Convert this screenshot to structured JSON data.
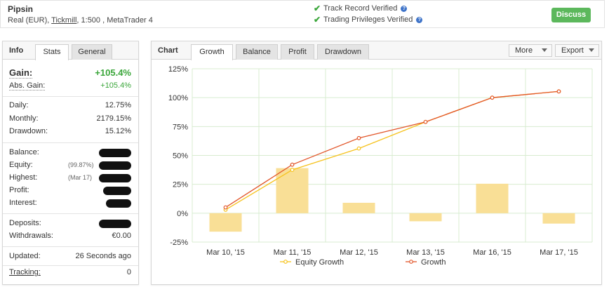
{
  "header": {
    "account_name": "Pipsin",
    "account_type": "Real (EUR),",
    "broker": "Tickmill",
    "leverage_platform": ", 1:500 , MetaTrader 4",
    "verifications": [
      "Track Record Verified",
      "Trading Privileges Verified"
    ],
    "discuss_label": "Discuss"
  },
  "info": {
    "title": "Info",
    "tabs": [
      "Stats",
      "General"
    ],
    "gain_label": "Gain:",
    "gain_value": "+105.4%",
    "abs_gain_label": "Abs. Gain:",
    "abs_gain_value": "+105.4%",
    "daily_label": "Daily:",
    "daily_value": "12.75%",
    "monthly_label": "Monthly:",
    "monthly_value": "2179.15%",
    "drawdown_label": "Drawdown:",
    "drawdown_value": "15.12%",
    "balance_label": "Balance:",
    "equity_label": "Equity:",
    "equity_note": "(99.87%)",
    "highest_label": "Highest:",
    "highest_note": "(Mar 17)",
    "profit_label": "Profit:",
    "interest_label": "Interest:",
    "deposits_label": "Deposits:",
    "withdrawals_label": "Withdrawals:",
    "withdrawals_value": "€0.00",
    "updated_label": "Updated:",
    "updated_value": "26 Seconds ago",
    "tracking_label": "Tracking:",
    "tracking_value": "0"
  },
  "chart_panel": {
    "title": "Chart",
    "tabs": [
      "Growth",
      "Balance",
      "Profit",
      "Drawdown"
    ],
    "more_label": "More",
    "export_label": "Export"
  },
  "chart_data": {
    "type": "line",
    "categories": [
      "Mar 10, '15",
      "Mar 11, '15",
      "Mar 12, '15",
      "Mar 13, '15",
      "Mar 16, '15",
      "Mar 17, '15"
    ],
    "series": [
      {
        "name": "Equity Growth",
        "type": "line",
        "color": "#f6c21c",
        "values": [
          3,
          37.5,
          56,
          79,
          100,
          105.4
        ]
      },
      {
        "name": "Growth",
        "type": "line",
        "color": "#e2562a",
        "values": [
          5,
          42,
          65,
          79,
          100,
          105.4
        ]
      },
      {
        "type": "bar",
        "color": "#f9df96",
        "values": [
          -16,
          39,
          9,
          -7,
          25.5,
          -9
        ]
      }
    ],
    "y_ticks": [
      "125%",
      "100%",
      "75%",
      "50%",
      "25%",
      "0%",
      "-25%"
    ],
    "ylim": [
      -25,
      125
    ],
    "grid": true,
    "legend": "bottom"
  }
}
